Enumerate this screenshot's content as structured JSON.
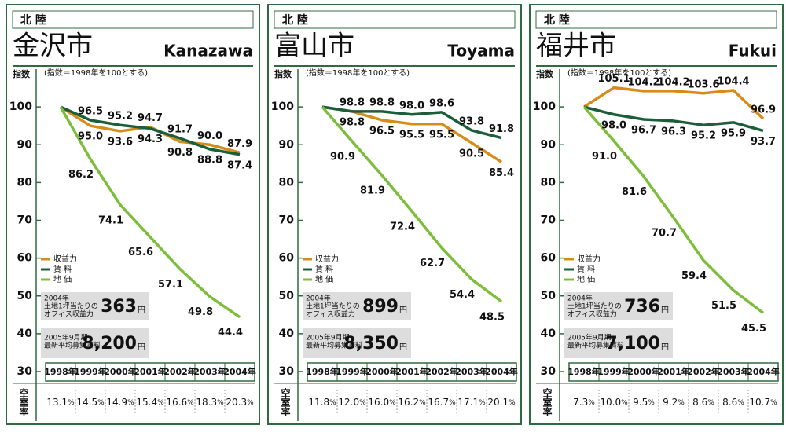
{
  "chart_data": [
    {
      "type": "line",
      "region": "北 陸",
      "title": "金沢市",
      "subtitle": "Kanazawa",
      "y_label": "指数",
      "note": "(指数＝1998年を100とする)",
      "categories": [
        "1998年",
        "1999年",
        "2000年",
        "2001年",
        "2002年",
        "2003年",
        "2004年"
      ],
      "ylim": [
        30,
        110
      ],
      "yticks": [
        30,
        40,
        50,
        60,
        70,
        80,
        90,
        100
      ],
      "series": [
        {
          "name": "収益力",
          "color": "#d98b1a",
          "values": [
            100,
            95.0,
            93.6,
            94.7,
            90.8,
            90.0,
            87.9
          ],
          "value_labels": [
            null,
            "95.0",
            "93.6",
            "94.7",
            "90.8",
            "90.0",
            "87.9"
          ]
        },
        {
          "name": "賃 料",
          "color": "#1d5e3a",
          "values": [
            100,
            96.5,
            95.2,
            94.3,
            91.7,
            88.8,
            87.4
          ],
          "value_labels": [
            null,
            "96.5",
            "95.2",
            "94.3",
            "91.7",
            "88.8",
            "87.4"
          ]
        },
        {
          "name": "地 価",
          "color": "#7cbd3a",
          "values": [
            100,
            86.2,
            74.1,
            65.6,
            57.1,
            49.8,
            44.4
          ],
          "value_labels": [
            null,
            "86.2",
            "74.1",
            "65.6",
            "57.1",
            "49.8",
            "44.4"
          ]
        }
      ],
      "info": [
        {
          "lines": [
            "2004年",
            "土地1坪当たりの",
            "オフィス収益力"
          ],
          "value": "363",
          "unit": "円"
        },
        {
          "lines": [
            "2005年9月期",
            "最新平均募集賃料"
          ],
          "value": "8,200",
          "unit": "円"
        }
      ],
      "vacancy_rate": {
        "label": "空室率",
        "values": [
          "13.1",
          "14.5",
          "14.9",
          "15.4",
          "16.6",
          "18.3",
          "20.3"
        ],
        "unit": "%"
      }
    },
    {
      "type": "line",
      "region": "北 陸",
      "title": "富山市",
      "subtitle": "Toyama",
      "y_label": "指数",
      "note": "(指数＝1998年を100とする)",
      "categories": [
        "1998年",
        "1999年",
        "2000年",
        "2001年",
        "2002年",
        "2003年",
        "2004年"
      ],
      "ylim": [
        30,
        110
      ],
      "yticks": [
        30,
        40,
        50,
        60,
        70,
        80,
        90,
        100
      ],
      "series": [
        {
          "name": "収益力",
          "color": "#d98b1a",
          "values": [
            100,
            98.8,
            96.5,
            95.5,
            95.5,
            90.5,
            85.4
          ],
          "value_labels": [
            null,
            "98.8",
            "96.5",
            "95.5",
            "95.5",
            "90.5",
            "85.4"
          ]
        },
        {
          "name": "賃 料",
          "color": "#1d5e3a",
          "values": [
            100,
            98.8,
            98.8,
            98.0,
            98.6,
            93.8,
            91.8
          ],
          "value_labels": [
            null,
            "98.8",
            "98.8",
            "98.0",
            "98.6",
            "93.8",
            "91.8"
          ]
        },
        {
          "name": "地 価",
          "color": "#7cbd3a",
          "values": [
            100,
            90.9,
            81.9,
            72.4,
            62.7,
            54.4,
            48.5
          ],
          "value_labels": [
            null,
            "90.9",
            "81.9",
            "72.4",
            "62.7",
            "54.4",
            "48.5"
          ]
        }
      ],
      "info": [
        {
          "lines": [
            "2004年",
            "土地1坪当たりの",
            "オフィス収益力"
          ],
          "value": "899",
          "unit": "円"
        },
        {
          "lines": [
            "2005年9月期",
            "最新平均募集賃料"
          ],
          "value": "8,350",
          "unit": "円"
        }
      ],
      "vacancy_rate": {
        "label": "空室率",
        "values": [
          "11.8",
          "12.0",
          "16.0",
          "16.2",
          "16.7",
          "17.1",
          "20.1"
        ],
        "unit": "%"
      }
    },
    {
      "type": "line",
      "region": "北 陸",
      "title": "福井市",
      "subtitle": "Fukui",
      "y_label": "指数",
      "note": "(指数＝1998年を100とする)",
      "categories": [
        "1998年",
        "1999年",
        "2000年",
        "2001年",
        "2002年",
        "2003年",
        "2004年"
      ],
      "ylim": [
        30,
        110
      ],
      "yticks": [
        30,
        40,
        50,
        60,
        70,
        80,
        90,
        100
      ],
      "series": [
        {
          "name": "収益力",
          "color": "#d98b1a",
          "values": [
            100,
            105.1,
            104.2,
            104.2,
            103.6,
            104.4,
            96.9
          ],
          "value_labels": [
            null,
            "105.1",
            "104.2",
            "104.2",
            "103.6",
            "104.4",
            "96.9"
          ]
        },
        {
          "name": "賃 料",
          "color": "#1d5e3a",
          "values": [
            100,
            98.0,
            96.7,
            96.3,
            95.2,
            95.9,
            93.7
          ],
          "value_labels": [
            null,
            "98.0",
            "96.7",
            "96.3",
            "95.2",
            "95.9",
            "93.7"
          ]
        },
        {
          "name": "地 価",
          "color": "#7cbd3a",
          "values": [
            100,
            91.0,
            81.6,
            70.7,
            59.4,
            51.5,
            45.5
          ],
          "value_labels": [
            null,
            "91.0",
            "81.6",
            "70.7",
            "59.4",
            "51.5",
            "45.5"
          ]
        }
      ],
      "info": [
        {
          "lines": [
            "2004年",
            "土地1坪当たりの",
            "オフィス収益力"
          ],
          "value": "736",
          "unit": "円"
        },
        {
          "lines": [
            "2005年9月期",
            "最新平均募集賃料"
          ],
          "value": "7,100",
          "unit": "円"
        }
      ],
      "vacancy_rate": {
        "label": "空室率",
        "values": [
          "7.3",
          "10.0",
          "9.5",
          "9.2",
          "8.6",
          "8.6",
          "10.7"
        ],
        "unit": "%"
      }
    }
  ]
}
